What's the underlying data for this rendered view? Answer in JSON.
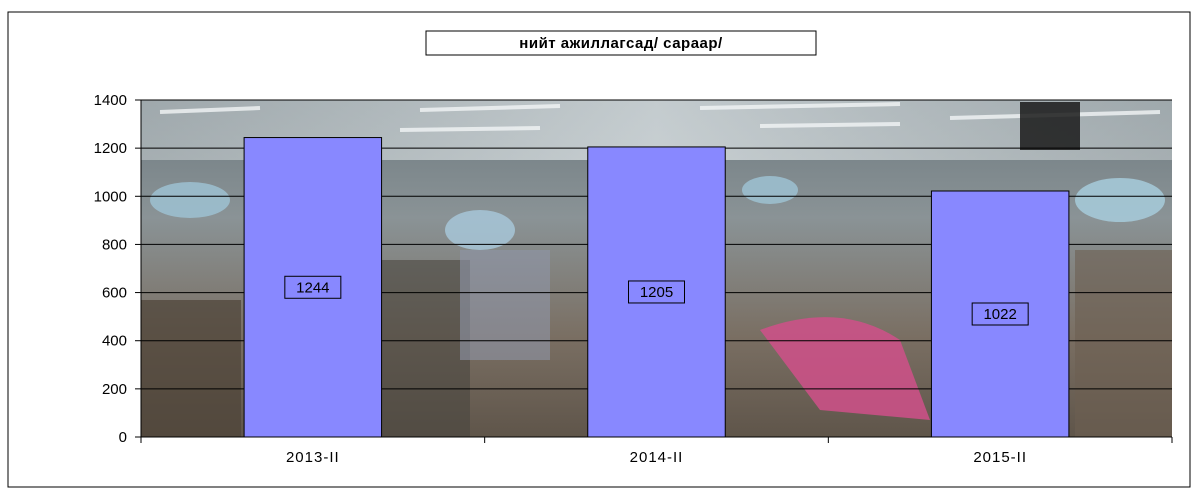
{
  "chart_data": {
    "type": "bar",
    "title": "нийт ажиллагсад/ сараар/",
    "categories": [
      "2013-II",
      "2014-II",
      "2015-II"
    ],
    "values": [
      1244,
      1205,
      1022
    ],
    "data_labels": [
      "1244",
      "1205",
      "1022"
    ],
    "y_ticks": [
      "0",
      "200",
      "400",
      "600",
      "800",
      "1000",
      "1200",
      "1400"
    ],
    "ylim": [
      0,
      1400
    ],
    "xlabel": "",
    "ylabel": "",
    "grid": true,
    "bar_color": "#8888ff",
    "legend": "none"
  }
}
